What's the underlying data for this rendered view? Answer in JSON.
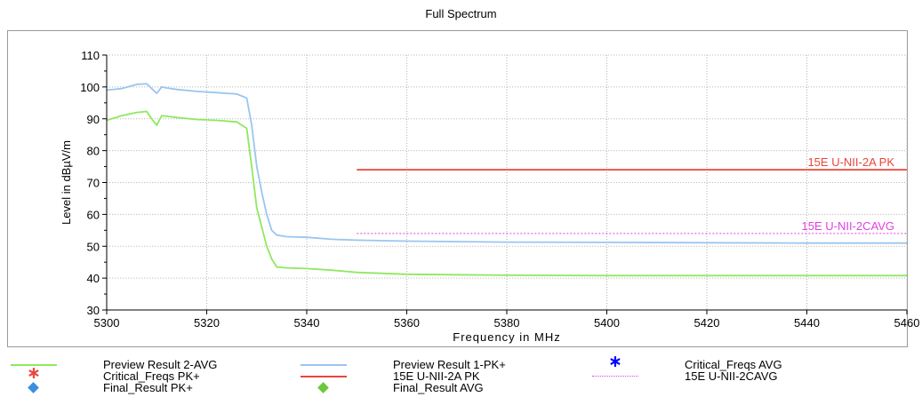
{
  "page_title": "Full Spectrum",
  "chart_data": {
    "type": "line",
    "title": "Full Spectrum",
    "xlabel": "Frequency in MHz",
    "ylabel": "Level in dBµV/m",
    "xlim": [
      5300,
      5460
    ],
    "ylim": [
      30,
      110
    ],
    "x_ticks": [
      5300,
      5320,
      5340,
      5360,
      5380,
      5400,
      5420,
      5440,
      5460
    ],
    "y_ticks": [
      30,
      40,
      50,
      60,
      70,
      80,
      90,
      100,
      110
    ],
    "grid": true,
    "series": [
      {
        "name": "Preview Result 1-PK+",
        "color": "#99c6f0",
        "style": "solid",
        "x": [
          5300,
          5303,
          5306,
          5308,
          5309,
          5310,
          5311,
          5312,
          5314,
          5318,
          5322,
          5326,
          5328,
          5329,
          5330,
          5331,
          5332,
          5333,
          5334,
          5336,
          5340,
          5345,
          5350,
          5360,
          5380,
          5400,
          5420,
          5440,
          5460
        ],
        "y": [
          99,
          99.5,
          100.8,
          101,
          99.5,
          98,
          100,
          99.7,
          99.2,
          98.6,
          98.2,
          97.8,
          96.5,
          88,
          75,
          67,
          60,
          55,
          53.5,
          53,
          52.8,
          52.2,
          51.9,
          51.6,
          51.3,
          51.2,
          51.1,
          51.0,
          51.0
        ]
      },
      {
        "name": "Preview Result 2-AVG",
        "color": "#8fe860",
        "style": "solid",
        "x": [
          5300,
          5303,
          5306,
          5308,
          5309,
          5310,
          5311,
          5312,
          5314,
          5318,
          5322,
          5326,
          5328,
          5329,
          5330,
          5331,
          5332,
          5333,
          5334,
          5336,
          5340,
          5345,
          5350,
          5360,
          5380,
          5400,
          5420,
          5440,
          5460
        ],
        "y": [
          89.5,
          91,
          92,
          92.3,
          90,
          88,
          91,
          90.8,
          90.4,
          89.8,
          89.5,
          89,
          87,
          75,
          62,
          56,
          50,
          46,
          43.5,
          43.2,
          43,
          42.5,
          41.8,
          41.2,
          40.9,
          40.8,
          40.8,
          40.8,
          40.8
        ]
      },
      {
        "name": "15E U-NII-2A PK",
        "color": "#e8463c",
        "style": "solid",
        "x": [
          5350,
          5460
        ],
        "y": [
          74,
          74
        ]
      },
      {
        "name": "15E U-NII-2CAVG",
        "color": "#e040e0",
        "style": "dotted",
        "x": [
          5350,
          5460
        ],
        "y": [
          54,
          54
        ]
      }
    ],
    "limit_labels": [
      {
        "text": "15E U-NII-2A PK",
        "series": "15E U-NII-2A PK",
        "color": "#e8463c",
        "y": 74
      },
      {
        "text": "15E U-NII-2CAVG",
        "series": "15E U-NII-2CAVG",
        "color": "#e040e0",
        "y": 54
      }
    ],
    "legend": [
      {
        "label": "Preview Result 2-AVG",
        "kind": "line",
        "color": "#8fe860",
        "style": "solid"
      },
      {
        "label": "Preview Result 1-PK+",
        "kind": "line",
        "color": "#99c6f0",
        "style": "solid"
      },
      {
        "label": "Critical_Freqs AVG",
        "kind": "asterisk",
        "color": "#0000ff"
      },
      {
        "label": "Critical_Freqs PK+",
        "kind": "asterisk",
        "color": "#e8463c"
      },
      {
        "label": "15E U-NII-2A PK",
        "kind": "line",
        "color": "#e8463c",
        "style": "solid"
      },
      {
        "label": "15E U-NII-2CAVG",
        "kind": "line",
        "color": "#e040e0",
        "style": "dotted"
      },
      {
        "label": "Final_Result PK+",
        "kind": "diamond",
        "color": "#3a8fe0"
      },
      {
        "label": "Final_Result AVG",
        "kind": "diamond",
        "color": "#6cc83a"
      }
    ],
    "legend_position": "bottom"
  }
}
